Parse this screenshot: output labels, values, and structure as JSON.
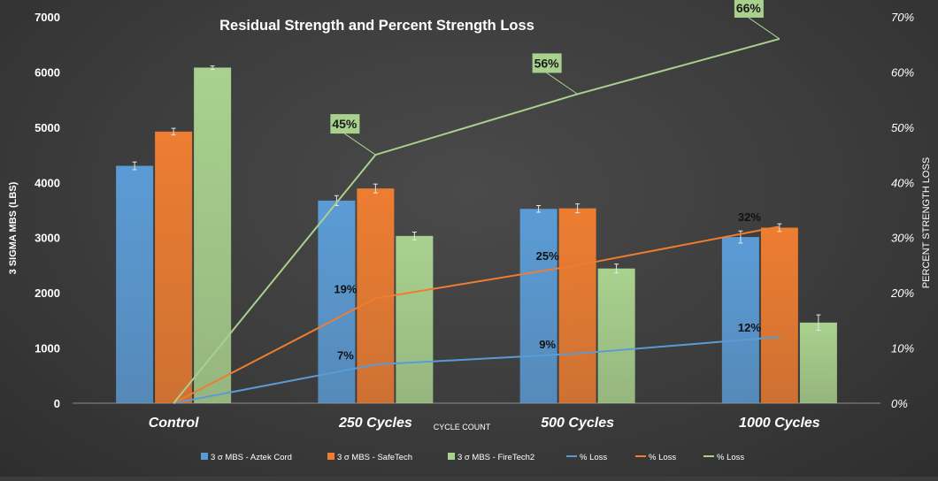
{
  "chart_data": {
    "type": "bar",
    "title": "Residual Strength and Percent Strength Loss",
    "xlabel": "CYCLE COUNT",
    "ylabel": "3 SIGMA MBS (LBS)",
    "y2label": "PERCENT STRENGTH LOSS",
    "categories": [
      "Control",
      "250 Cycles",
      "500 Cycles",
      "1000 Cycles"
    ],
    "ylim": [
      0,
      7000
    ],
    "yticks": [
      0,
      1000,
      2000,
      3000,
      4000,
      5000,
      6000,
      7000
    ],
    "y2lim": [
      0,
      70
    ],
    "y2ticks": [
      "0%",
      "10%",
      "20%",
      "30%",
      "40%",
      "50%",
      "60%",
      "70%"
    ],
    "y2tick_values": [
      0,
      10,
      20,
      30,
      40,
      50,
      60,
      70
    ],
    "grid": false,
    "legend_position": "bottom",
    "bar_series": [
      {
        "name": "3 σ MBS - Aztek Cord",
        "color": "#5b9bd5",
        "values": [
          4300,
          3670,
          3520,
          3010
        ],
        "errors": [
          70,
          90,
          60,
          110
        ]
      },
      {
        "name": "3 σ MBS - SafeTech",
        "color": "#ed7d31",
        "values": [
          4920,
          3890,
          3530,
          3180
        ],
        "errors": [
          60,
          80,
          80,
          70
        ]
      },
      {
        "name": "3 σ MBS - FireTech2",
        "color": "#a9d18e",
        "values": [
          6080,
          3030,
          2440,
          1460
        ],
        "errors": [
          30,
          70,
          80,
          140
        ]
      }
    ],
    "line_series": [
      {
        "name": "% Loss",
        "color": "#5b9bd5",
        "values": [
          0,
          7,
          9,
          12
        ],
        "labels": [
          "",
          "7%",
          "9%",
          "12%"
        ],
        "label_style": "plain"
      },
      {
        "name": "% Loss",
        "color": "#ed7d31",
        "values": [
          0,
          19,
          25,
          32
        ],
        "labels": [
          "",
          "19%",
          "25%",
          "32%"
        ],
        "label_style": "plain"
      },
      {
        "name": "% Loss",
        "color": "#a9d18e",
        "values": [
          0,
          45,
          56,
          66
        ],
        "labels": [
          "",
          "45%",
          "56%",
          "66%"
        ],
        "label_style": "callout"
      }
    ]
  }
}
